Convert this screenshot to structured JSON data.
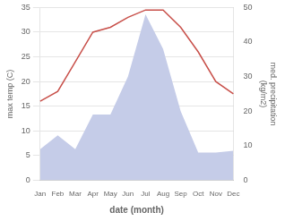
{
  "chart_data": {
    "type": "line",
    "categories": [
      "Jan",
      "Feb",
      "Mar",
      "Apr",
      "May",
      "Jun",
      "Jul",
      "Aug",
      "Sep",
      "Oct",
      "Nov",
      "Dec"
    ],
    "series": [
      {
        "type": "line",
        "color": "#c8504a",
        "values": [
          16,
          18,
          24,
          30,
          31,
          33,
          34.5,
          34.5,
          31,
          26,
          20,
          17.5
        ]
      },
      {
        "type": "area",
        "color": "#c5cce8",
        "axis": "y2",
        "values": [
          9,
          13,
          9,
          19,
          19,
          30,
          48,
          38,
          20,
          8,
          8,
          8.5
        ]
      }
    ],
    "xlabel": "date (month)",
    "ylabel": "max temp (C)",
    "y2label": "med. precipitation\n(kg/m2)",
    "ylim": [
      0,
      35
    ],
    "yticks": [
      0,
      5,
      10,
      15,
      20,
      25,
      30,
      35
    ],
    "y2lim": [
      0,
      50
    ],
    "y2ticks": [
      0,
      10,
      20,
      30,
      40,
      50
    ],
    "grid": true
  }
}
